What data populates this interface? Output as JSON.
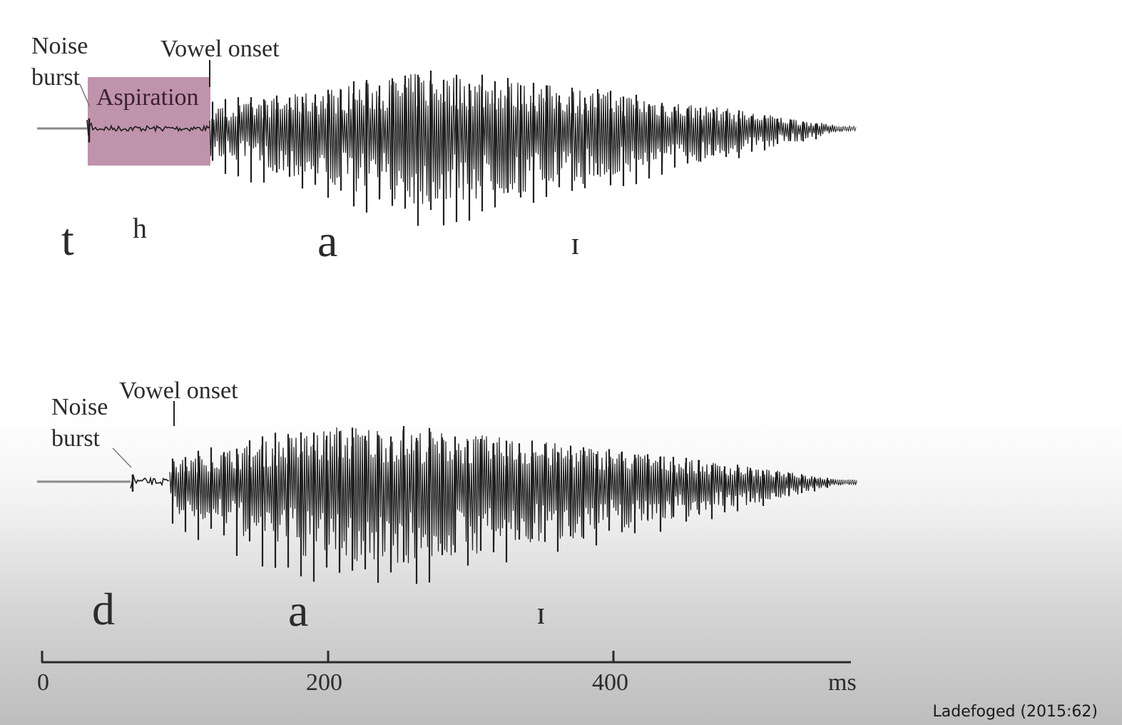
{
  "panels": [
    {
      "noise_burst_line1": "Noise",
      "noise_burst_line2": "burst",
      "vowel_onset": "Vowel onset",
      "aspiration": "Aspiration",
      "segments": [
        "t",
        "h",
        "a",
        "ɪ"
      ]
    },
    {
      "noise_burst_line1": "Noise",
      "noise_burst_line2": "burst",
      "vowel_onset": "Vowel onset",
      "segments": [
        "d",
        "a",
        "ɪ"
      ]
    }
  ],
  "time_axis": {
    "ticks": [
      "0",
      "200",
      "400"
    ],
    "unit": "ms"
  },
  "credit": "Ladefoged (2015:62)",
  "colors": {
    "waveform": "#1f1f1f",
    "aspiration_box": "#a86a8c",
    "baseline": "#8a8a8a"
  }
}
